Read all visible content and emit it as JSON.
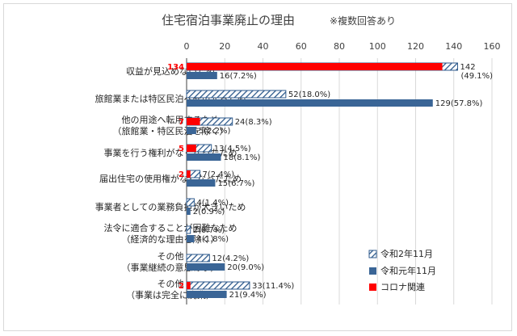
{
  "chart_data": {
    "type": "bar",
    "orientation": "horizontal",
    "title": "住宅宿泊事業廃止の理由",
    "note": "※複数回答あり",
    "xlim": [
      0,
      160
    ],
    "xticks": [
      "0",
      "20",
      "40",
      "60",
      "80",
      "100",
      "120",
      "140",
      "160"
    ],
    "categories": [
      [
        "収益が見込めないため"
      ],
      [
        "旅館業または特区民泊へ転用するため"
      ],
      [
        "他の用途へ転用するため",
        "（旅館業・特区民泊を除く）"
      ],
      [
        "事業を行う権利がなくなったため"
      ],
      [
        "届出住宅の使用権がなくなったため"
      ],
      [
        "事業者としての業務負担が大きいため"
      ],
      [
        "法令に適合することが困難なため",
        "（経済的な理由を除く）"
      ],
      [
        "その他",
        "（事業継続の意思あり）"
      ],
      [
        "その他",
        "（事業は完全に廃業）"
      ]
    ],
    "series": [
      {
        "name": "令和2年11月",
        "values": [
          142,
          52,
          24,
          13,
          7,
          4,
          2,
          12,
          33
        ],
        "labels": [
          "142",
          "52(18.0%)",
          "24(8.3%)",
          "13(4.5%)",
          "7(2.4%)",
          "4(1.4%)",
          "2(0.7%)",
          "12(4.2%)",
          "33(11.4%)"
        ],
        "extra_labels": [
          "(49.1%)",
          "",
          "",
          "",
          "",
          "",
          "",
          "",
          ""
        ]
      },
      {
        "name": "令和元年11月",
        "values": [
          16,
          129,
          5,
          18,
          15,
          2,
          4,
          20,
          21
        ],
        "labels": [
          "16(7.2%)",
          "129(57.8%)",
          "5(2.2%)",
          "18(8.1%)",
          "15(6.7%)",
          "2(0.9%)",
          "4(1.8%)",
          "20(9.0%)",
          "21(9.4%)"
        ]
      },
      {
        "name": "コロナ関連",
        "values": [
          134,
          null,
          7,
          5,
          2,
          null,
          null,
          null,
          2
        ],
        "labels": [
          "134",
          "",
          "7",
          "5",
          "2",
          "",
          "",
          "",
          "2"
        ]
      }
    ],
    "colors": {
      "r2": "#2e5a8c",
      "r1": "#3a6596",
      "covid": "#ff0000",
      "grid": "#d9d9d9",
      "axis": "#404040"
    },
    "legend": "bottom-right"
  }
}
